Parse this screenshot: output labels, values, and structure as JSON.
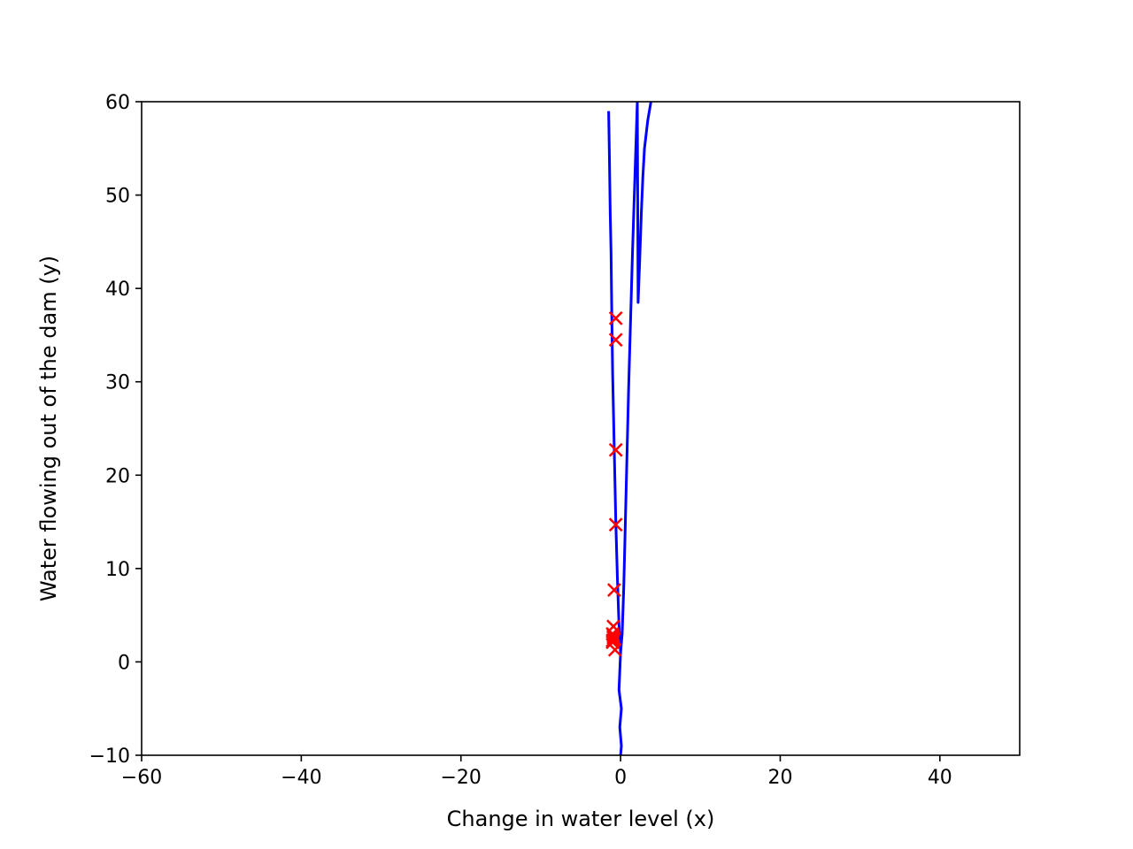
{
  "chart_data": {
    "type": "scatter",
    "title": "",
    "xlabel": "Change in water level (x)",
    "ylabel": "Water flowing out of the dam (y)",
    "xlim": [
      -60,
      50
    ],
    "ylim": [
      -10,
      60
    ],
    "x_ticks": [
      -60,
      -40,
      -20,
      0,
      20,
      40
    ],
    "y_ticks": [
      -10,
      0,
      10,
      20,
      30,
      40,
      50,
      60
    ],
    "x_tick_labels": [
      "−60",
      "−40",
      "−20",
      "0",
      "20",
      "40"
    ],
    "y_tick_labels": [
      "−10",
      "0",
      "10",
      "20",
      "30",
      "40",
      "50",
      "60"
    ],
    "grid": false,
    "legend": "none",
    "colors": {
      "points": "#ff0000",
      "fit": "#0000ff",
      "frame": "#000000"
    },
    "points": {
      "marker": "x",
      "x": [
        -0.6,
        -0.6,
        -0.6,
        -0.6,
        -0.8,
        -0.9,
        -1.0,
        -0.9,
        -1.0,
        -0.8,
        -1.0,
        -0.7,
        -0.9
      ],
      "y": [
        36.8,
        34.5,
        22.7,
        14.7,
        7.7,
        3.8,
        3.0,
        2.8,
        2.3,
        2.4,
        2.1,
        1.3,
        2.6
      ]
    },
    "fit_curve": {
      "x": [
        -1.5,
        -1.4,
        -1.3,
        -1.2,
        -1.1,
        -1.0,
        -0.8,
        -0.6,
        -0.4,
        -0.2,
        0.0,
        0.2,
        0.4,
        0.6,
        0.8,
        1.0,
        1.2,
        1.5,
        1.8,
        2.1,
        2.2,
        2.4,
        2.6,
        2.8,
        3.0,
        3.4,
        3.8
      ],
      "y": [
        59.0,
        54.0,
        48.0,
        44.0,
        37.0,
        31.0,
        23.0,
        15.0,
        9.0,
        4.0,
        1.0,
        3.0,
        8.0,
        15.0,
        22.0,
        29.0,
        35.0,
        44.0,
        52.0,
        60.0,
        38.5,
        43.0,
        48.0,
        52.0,
        55.0,
        58.0,
        60.0
      ]
    },
    "fit_tail": {
      "x": [
        0.0,
        -0.2,
        0.1,
        -0.1,
        0.1,
        0.0
      ],
      "y": [
        1.0,
        -3.0,
        -5.0,
        -7.0,
        -9.0,
        -10.0
      ]
    }
  }
}
